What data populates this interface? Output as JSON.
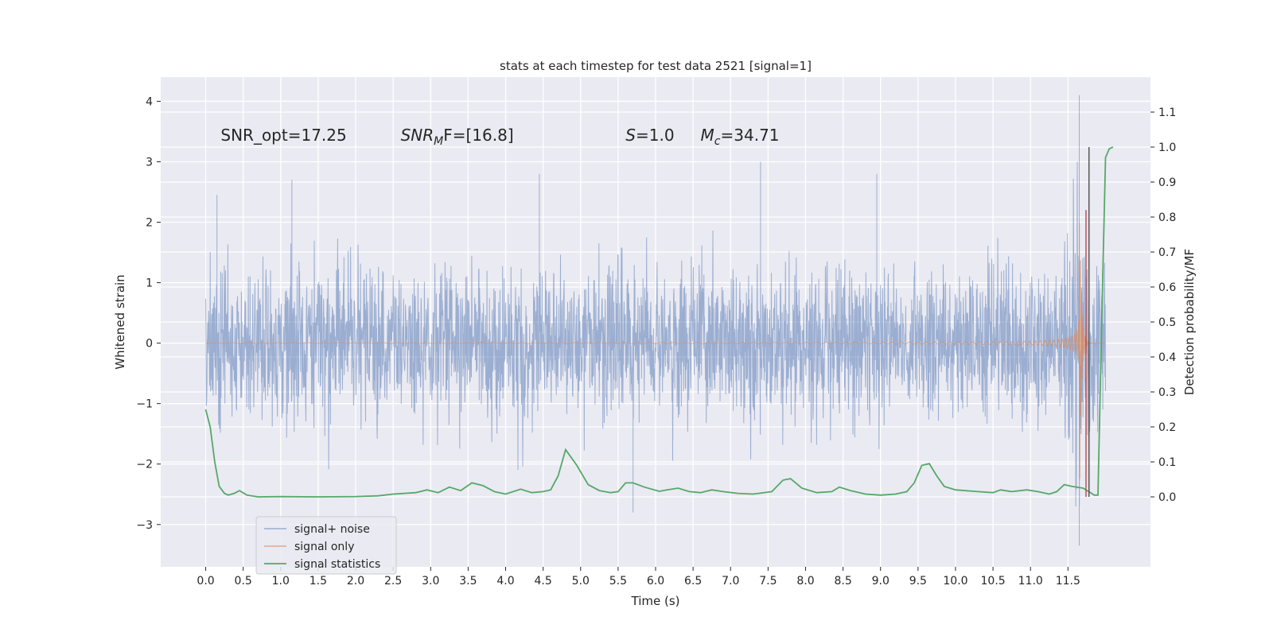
{
  "chart_data": {
    "type": "line",
    "title": "stats at each timestep for test data 2521 [signal=1]",
    "xlabel": "Time (s)",
    "ylabel": "Whitened strain",
    "y2label": "Detection probability/MF",
    "xlim": [
      -0.6,
      12.6
    ],
    "ylim": [
      -3.7,
      4.4
    ],
    "y2lim": [
      -0.2,
      1.2
    ],
    "grid": true,
    "legend_position": "lower-left",
    "xticks": [
      "0.0",
      "0.5",
      "1.0",
      "1.5",
      "2.0",
      "2.5",
      "3.0",
      "3.5",
      "4.0",
      "4.5",
      "5.0",
      "5.5",
      "6.0",
      "6.5",
      "7.0",
      "7.5",
      "8.0",
      "8.5",
      "9.0",
      "9.5",
      "10.0",
      "10.5",
      "11.0",
      "11.5"
    ],
    "yticks": [
      "−3",
      "−2",
      "−1",
      "0",
      "1",
      "2",
      "3",
      "4"
    ],
    "y2ticks": [
      "0.0",
      "0.1",
      "0.2",
      "0.3",
      "0.4",
      "0.5",
      "0.6",
      "0.7",
      "0.8",
      "0.9",
      "1.0",
      "1.1"
    ],
    "annotations": [
      {
        "text": "SNR_opt=17.25",
        "x": 0.2,
        "y": 3.35
      },
      {
        "text": "SNR",
        "sub": "M",
        "suffix": "F=[16.8]",
        "x": 2.6,
        "y": 3.35
      },
      {
        "text": "S",
        "suffix": "=1.0",
        "x": 5.6,
        "y": 3.35
      },
      {
        "text": "M",
        "sub": "c",
        "suffix": "=34.71",
        "x": 6.6,
        "y": 3.35
      }
    ],
    "series": [
      {
        "name": "signal+ noise",
        "color": "#4c72b0",
        "t_start": 0.0,
        "t_end": 12.0,
        "amplitude_std": 0.62,
        "peak_values": [
          [
            0.15,
            2.45
          ],
          [
            1.15,
            2.7
          ],
          [
            4.45,
            2.8
          ],
          [
            5.7,
            -2.8
          ],
          [
            7.4,
            3.0
          ],
          [
            8.95,
            2.8
          ],
          [
            11.65,
            4.1
          ],
          [
            11.65,
            -3.35
          ]
        ]
      },
      {
        "name": "signal only",
        "color": "#dd8452",
        "t_start": 0.0,
        "t_end": 12.0,
        "merger_time": 11.65,
        "peak_amplitude": 3.1
      },
      {
        "name": "signal statistics",
        "color": "#55a868",
        "axis": "y2",
        "points": [
          [
            0.0,
            0.25
          ],
          [
            0.06,
            0.2
          ],
          [
            0.12,
            0.1
          ],
          [
            0.18,
            0.03
          ],
          [
            0.25,
            0.01
          ],
          [
            0.3,
            0.005
          ],
          [
            0.38,
            0.01
          ],
          [
            0.45,
            0.018
          ],
          [
            0.55,
            0.005
          ],
          [
            0.7,
            0.0
          ],
          [
            1.0,
            0.001
          ],
          [
            1.5,
            0.0
          ],
          [
            2.0,
            0.001
          ],
          [
            2.3,
            0.003
          ],
          [
            2.5,
            0.008
          ],
          [
            2.8,
            0.012
          ],
          [
            2.95,
            0.02
          ],
          [
            3.1,
            0.012
          ],
          [
            3.25,
            0.028
          ],
          [
            3.4,
            0.018
          ],
          [
            3.55,
            0.04
          ],
          [
            3.7,
            0.032
          ],
          [
            3.85,
            0.015
          ],
          [
            4.0,
            0.008
          ],
          [
            4.2,
            0.022
          ],
          [
            4.35,
            0.012
          ],
          [
            4.5,
            0.015
          ],
          [
            4.6,
            0.02
          ],
          [
            4.7,
            0.06
          ],
          [
            4.8,
            0.135
          ],
          [
            4.95,
            0.09
          ],
          [
            5.1,
            0.035
          ],
          [
            5.25,
            0.018
          ],
          [
            5.4,
            0.012
          ],
          [
            5.5,
            0.015
          ],
          [
            5.6,
            0.04
          ],
          [
            5.7,
            0.04
          ],
          [
            5.85,
            0.028
          ],
          [
            6.05,
            0.016
          ],
          [
            6.15,
            0.02
          ],
          [
            6.3,
            0.025
          ],
          [
            6.45,
            0.015
          ],
          [
            6.6,
            0.012
          ],
          [
            6.75,
            0.02
          ],
          [
            6.9,
            0.015
          ],
          [
            7.1,
            0.01
          ],
          [
            7.3,
            0.008
          ],
          [
            7.55,
            0.015
          ],
          [
            7.7,
            0.048
          ],
          [
            7.8,
            0.052
          ],
          [
            7.95,
            0.025
          ],
          [
            8.15,
            0.012
          ],
          [
            8.35,
            0.015
          ],
          [
            8.45,
            0.028
          ],
          [
            8.6,
            0.018
          ],
          [
            8.8,
            0.008
          ],
          [
            9.0,
            0.005
          ],
          [
            9.2,
            0.008
          ],
          [
            9.35,
            0.015
          ],
          [
            9.45,
            0.04
          ],
          [
            9.55,
            0.09
          ],
          [
            9.65,
            0.095
          ],
          [
            9.75,
            0.06
          ],
          [
            9.85,
            0.03
          ],
          [
            10.0,
            0.02
          ],
          [
            10.3,
            0.015
          ],
          [
            10.5,
            0.012
          ],
          [
            10.6,
            0.02
          ],
          [
            10.75,
            0.015
          ],
          [
            10.95,
            0.02
          ],
          [
            11.1,
            0.015
          ],
          [
            11.25,
            0.008
          ],
          [
            11.35,
            0.015
          ],
          [
            11.45,
            0.035
          ],
          [
            11.55,
            0.03
          ],
          [
            11.7,
            0.025
          ],
          [
            11.8,
            0.012
          ],
          [
            11.85,
            0.005
          ],
          [
            11.9,
            0.005
          ],
          [
            11.95,
            0.5
          ],
          [
            12.0,
            0.97
          ],
          [
            12.05,
            0.995
          ],
          [
            12.1,
            1.0
          ]
        ]
      }
    ],
    "vertical_markers_y2": [
      {
        "x": 11.74,
        "y_from": 0.0,
        "y_to": 0.82,
        "color": "#c44e52"
      },
      {
        "x": 11.78,
        "y_from": 0.0,
        "y_to": 1.0,
        "color": "#555555"
      }
    ]
  }
}
